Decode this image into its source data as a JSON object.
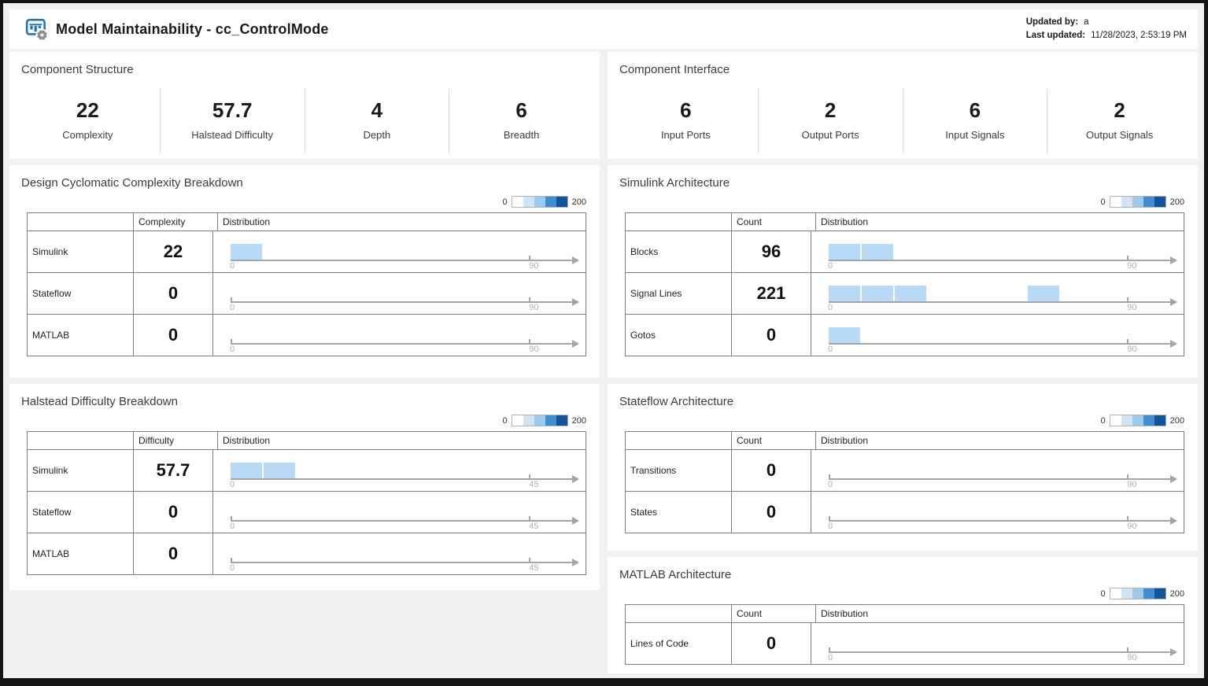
{
  "window": {
    "title": "Model Maintainability - cc_ControlMode",
    "updated_by_label": "Updated by:",
    "updated_by_value": "a",
    "last_updated_label": "Last updated:",
    "last_updated_value": "11/28/2023, 2:53:19 PM"
  },
  "colors": {
    "bar_fill": "#b7dbf6",
    "axis": "#a4a4a4",
    "legend_scale": [
      "#ffffff",
      "#d2e3f3",
      "#9dc9ec",
      "#3e8ed3",
      "#10559a"
    ]
  },
  "stat_panels": [
    {
      "id": "component-structure",
      "title": "Component Structure",
      "stats": [
        {
          "value": "22",
          "label": "Complexity"
        },
        {
          "value": "57.7",
          "label": "Halstead Difficulty"
        },
        {
          "value": "4",
          "label": "Depth"
        },
        {
          "value": "6",
          "label": "Breadth"
        }
      ]
    },
    {
      "id": "component-interface",
      "title": "Component Interface",
      "stats": [
        {
          "value": "6",
          "label": "Input Ports"
        },
        {
          "value": "2",
          "label": "Output Ports"
        },
        {
          "value": "6",
          "label": "Input Signals"
        },
        {
          "value": "2",
          "label": "Output Signals"
        }
      ]
    }
  ],
  "table_panels": [
    {
      "id": "cyclomatic-complexity-breakdown",
      "title": "Design Cyclomatic Complexity Breakdown",
      "legend": {
        "min": "0",
        "max": "200"
      },
      "columns": {
        "value": "Complexity",
        "distribution": "Distribution"
      },
      "axis_start_label": "0",
      "axis_end_label": "90",
      "axis_end_value": 90,
      "rows": [
        {
          "label": "Simulink",
          "value": "22",
          "bins": [
            [
              0,
              10
            ]
          ]
        },
        {
          "label": "Stateflow",
          "value": "0",
          "bins": []
        },
        {
          "label": "MATLAB",
          "value": "0",
          "bins": []
        }
      ]
    },
    {
      "id": "simulink-architecture",
      "title": "Simulink Architecture",
      "legend": {
        "min": "0",
        "max": "200"
      },
      "columns": {
        "value": "Count",
        "distribution": "Distribution"
      },
      "axis_start_label": "0",
      "axis_end_label": "90",
      "axis_end_value": 90,
      "rows": [
        {
          "label": "Blocks",
          "value": "96",
          "bins": [
            [
              0,
              10
            ],
            [
              10,
              20
            ]
          ]
        },
        {
          "label": "Signal Lines",
          "value": "221",
          "bins": [
            [
              0,
              10
            ],
            [
              10,
              20
            ],
            [
              20,
              30
            ],
            [
              60,
              70
            ]
          ]
        },
        {
          "label": "Gotos",
          "value": "0",
          "bins": [
            [
              0,
              10
            ]
          ]
        }
      ]
    },
    {
      "id": "halstead-difficulty-breakdown",
      "title": "Halstead Difficulty Breakdown",
      "legend": {
        "min": "0",
        "max": "200"
      },
      "columns": {
        "value": "Difficulty",
        "distribution": "Distribution"
      },
      "axis_start_label": "0",
      "axis_end_label": "45",
      "axis_end_value": 45,
      "rows": [
        {
          "label": "Simulink",
          "value": "57.7",
          "bins": [
            [
              0,
              5
            ],
            [
              5,
              10
            ]
          ]
        },
        {
          "label": "Stateflow",
          "value": "0",
          "bins": []
        },
        {
          "label": "MATLAB",
          "value": "0",
          "bins": []
        }
      ]
    },
    {
      "id": "stateflow-architecture",
      "title": "Stateflow Architecture",
      "legend": {
        "min": "0",
        "max": "200"
      },
      "columns": {
        "value": "Count",
        "distribution": "Distribution"
      },
      "axis_start_label": "0",
      "axis_end_label": "90",
      "axis_end_value": 90,
      "rows": [
        {
          "label": "Transitions",
          "value": "0",
          "bins": []
        },
        {
          "label": "States",
          "value": "0",
          "bins": []
        }
      ]
    },
    {
      "id": "matlab-architecture",
      "title": "MATLAB Architecture",
      "legend": {
        "min": "0",
        "max": "200"
      },
      "columns": {
        "value": "Count",
        "distribution": "Distribution"
      },
      "axis_start_label": "0",
      "axis_end_label": "90",
      "axis_end_value": 90,
      "rows": [
        {
          "label": "Lines of Code",
          "value": "0",
          "bins": []
        }
      ]
    }
  ]
}
